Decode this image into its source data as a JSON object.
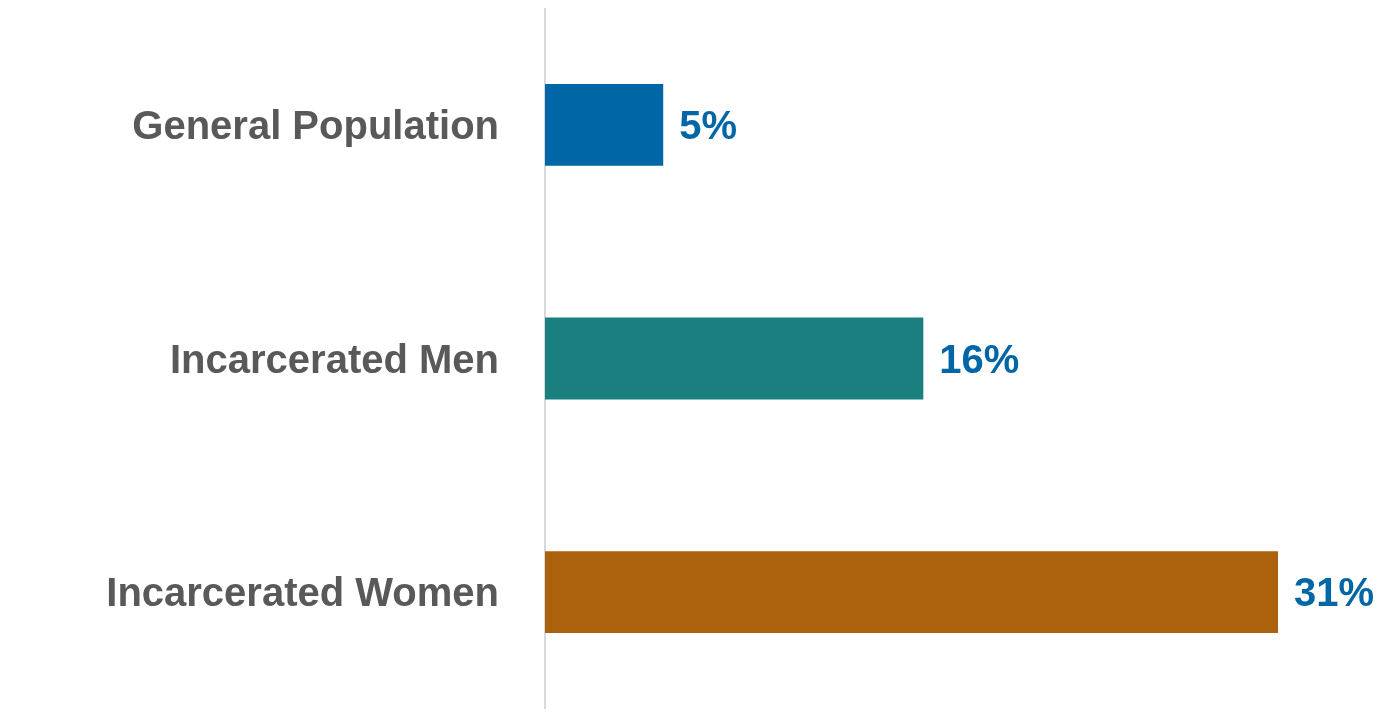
{
  "chart_data": {
    "type": "bar",
    "orientation": "horizontal",
    "categories": [
      "General Population",
      "Incarcerated Men",
      "Incarcerated Women"
    ],
    "values": [
      5,
      16,
      31
    ],
    "colors": [
      "#0066a6",
      "#1b7f80",
      "#ac620c"
    ],
    "value_labels": [
      "5%",
      "16%",
      "31%"
    ]
  }
}
